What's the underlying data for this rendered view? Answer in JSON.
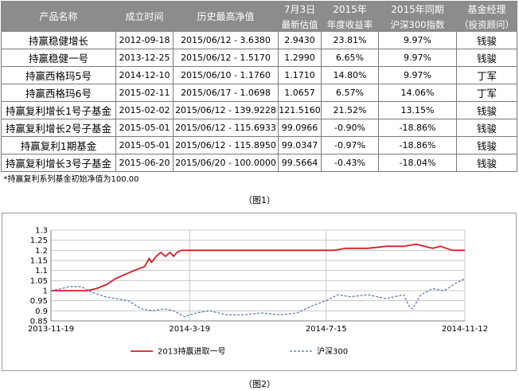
{
  "table": {
    "headers_top": [
      "产品名称",
      "成立时间",
      "历史最高净值",
      "7月3日",
      "2015年",
      "2015年同期",
      "基金经理"
    ],
    "headers_bottom": [
      "",
      "",
      "",
      "最新估值",
      "年度收益率",
      "沪深300指数",
      "（投资顾问）"
    ],
    "rows": [
      {
        "name": "持赢稳健增长",
        "date": "2012-09-18",
        "peak": "2015/06/12 - 3.6380",
        "nav": "2.9430",
        "ret": "23.81%",
        "hs300": "9.97%",
        "mgr": "钱骏"
      },
      {
        "name": "持赢稳健一号",
        "date": "2013-12-25",
        "peak": "2015/06/12 - 1.5170",
        "nav": "1.2990",
        "ret": "6.65%",
        "hs300": "9.97%",
        "mgr": "钱骏"
      },
      {
        "name": "持赢西格玛5号",
        "date": "2014-12-10",
        "peak": "2015/06/10 - 1.1760",
        "nav": "1.1710",
        "ret": "14.80%",
        "hs300": "9.97%",
        "mgr": "丁军"
      },
      {
        "name": "持赢西格玛6号",
        "date": "2015-02-11",
        "peak": "2015/06/17 - 1.0698",
        "nav": "1.0657",
        "ret": "6.57%",
        "hs300": "14.06%",
        "mgr": "丁军"
      },
      {
        "name": "持赢复利增长1号子基金",
        "date": "2015-02-02",
        "peak": "2015/06/12 - 139.9228",
        "nav": "121.5160",
        "ret": "21.52%",
        "hs300": "13.15%",
        "mgr": "钱骏"
      },
      {
        "name": "持赢复利增长2号子基金",
        "date": "2015-05-01",
        "peak": "2015/06/12 - 115.6933",
        "nav": "99.0966",
        "ret": "-0.90%",
        "hs300": "-18.86%",
        "mgr": "钱骏"
      },
      {
        "name": "持赢复利1期基金",
        "date": "2015-05-01",
        "peak": "2015/06/12 - 115.8950",
        "nav": "99.0347",
        "ret": "-0.97%",
        "hs300": "-18.86%",
        "mgr": "钱骏"
      },
      {
        "name": "持赢复利增长3号子基金",
        "date": "2015-06-20",
        "peak": "2015/06/20 - 100.0000",
        "nav": "99.5664",
        "ret": "-0.43%",
        "hs300": "-18.04%",
        "mgr": "钱骏"
      }
    ],
    "footnote": "*持赢复利系列基金初始净值为100.00"
  },
  "caption1": "（图1）",
  "caption2": "（图2）",
  "colors": {
    "header_bg": "#8c8c8c",
    "series1": "#d61f26",
    "series2": "#5a6fa8"
  },
  "chart_data": {
    "type": "line",
    "ylim": [
      0.85,
      1.3
    ],
    "yticks": [
      "1.3",
      "1.25",
      "1.2",
      "1.15",
      "1.1",
      "1.05",
      "1",
      "0.95",
      "0.9",
      "0.85"
    ],
    "xlim": [
      "2013-11-19",
      "2014-11-12"
    ],
    "xticks": [
      "2013-11-19",
      "2014-3-19",
      "2014-7-15",
      "2014-11-12"
    ],
    "grid": true,
    "legend_position": "bottom",
    "series": [
      {
        "name": "2013持赢进取一号",
        "color": "#d61f26",
        "style": "solid",
        "x": [
          "2013-11-19",
          "2013-12-05",
          "2013-12-20",
          "2013-12-28",
          "2014-01-06",
          "2014-01-14",
          "2014-01-22",
          "2014-01-26",
          "2014-01-30",
          "2014-02-08",
          "2014-02-12",
          "2014-02-14",
          "2014-02-18",
          "2014-02-22",
          "2014-02-26",
          "2014-03-02",
          "2014-03-05",
          "2014-03-08",
          "2014-03-12",
          "2014-03-19",
          "2014-04-10",
          "2014-05-10",
          "2014-06-10",
          "2014-07-10",
          "2014-07-22",
          "2014-08-01",
          "2014-08-20",
          "2014-09-05",
          "2014-09-20",
          "2014-10-01",
          "2014-10-15",
          "2014-10-22",
          "2014-11-01",
          "2014-11-12"
        ],
        "y": [
          1.0,
          1.0,
          1.0,
          1.01,
          1.03,
          1.06,
          1.08,
          1.09,
          1.1,
          1.12,
          1.16,
          1.14,
          1.17,
          1.19,
          1.17,
          1.19,
          1.17,
          1.19,
          1.2,
          1.2,
          1.2,
          1.2,
          1.2,
          1.2,
          1.2,
          1.21,
          1.21,
          1.22,
          1.22,
          1.23,
          1.21,
          1.22,
          1.2,
          1.2
        ]
      },
      {
        "name": "沪深300",
        "color": "#5a6fa8",
        "style": "dashed",
        "x": [
          "2013-11-19",
          "2013-11-28",
          "2013-12-05",
          "2013-12-15",
          "2013-12-25",
          "2014-01-05",
          "2014-01-15",
          "2014-01-25",
          "2014-02-05",
          "2014-02-15",
          "2014-02-25",
          "2014-03-05",
          "2014-03-15",
          "2014-03-19",
          "2014-03-25",
          "2014-04-05",
          "2014-04-20",
          "2014-05-05",
          "2014-05-20",
          "2014-06-05",
          "2014-06-20",
          "2014-07-05",
          "2014-07-15",
          "2014-07-25",
          "2014-08-05",
          "2014-08-20",
          "2014-09-05",
          "2014-09-20",
          "2014-09-25",
          "2014-09-28",
          "2014-10-05",
          "2014-10-15",
          "2014-10-25",
          "2014-11-05",
          "2014-11-12"
        ],
        "y": [
          1.0,
          1.01,
          1.02,
          1.02,
          0.99,
          0.97,
          0.96,
          0.95,
          0.91,
          0.9,
          0.91,
          0.9,
          0.87,
          0.88,
          0.89,
          0.9,
          0.88,
          0.88,
          0.89,
          0.88,
          0.89,
          0.93,
          0.95,
          0.98,
          0.97,
          0.98,
          0.96,
          0.98,
          0.92,
          0.91,
          0.98,
          1.01,
          1.0,
          1.04,
          1.06
        ]
      }
    ]
  }
}
